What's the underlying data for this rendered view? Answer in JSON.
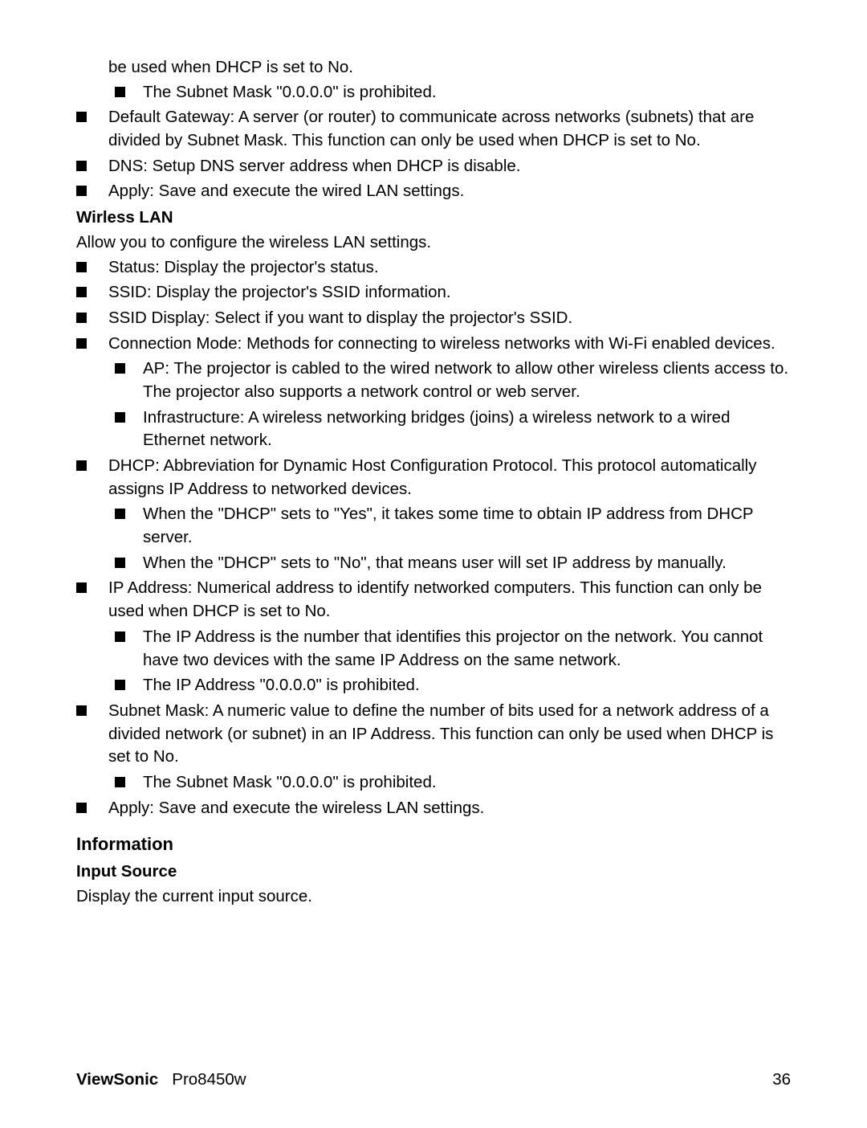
{
  "line_continued": "be used when DHCP is set to No.",
  "sub_subnet_prohibited": "The Subnet Mask \"0.0.0.0\" is prohibited.",
  "default_gateway": "Default Gateway: A server (or router) to communicate across networks (subnets) that are divided by Subnet Mask. This function can only be used when DHCP is set to No.",
  "dns": "DNS: Setup DNS server address when DHCP is disable.",
  "apply_wired": "Apply: Save and execute the wired LAN settings.",
  "wireless_heading": "Wirless LAN",
  "wireless_intro": "Allow you to configure the wireless LAN settings.",
  "status": "Status: Display the projector's status.",
  "ssid": "SSID: Display the projector's SSID information.",
  "ssid_display": "SSID Display: Select if you want to display the projector's SSID.",
  "conn_mode": "Connection Mode: Methods for connecting to wireless networks with Wi-Fi enabled devices.",
  "ap": "AP: The projector is cabled to the wired network to allow other wireless clients access to. The projector also supports a network control or web server.",
  "infra": "Infrastructure: A wireless networking bridges (joins) a wireless network to a wired Ethernet network.",
  "dhcp": "DHCP: Abbreviation for Dynamic Host Configuration Protocol. This protocol automatically assigns IP Address to networked devices.",
  "dhcp_yes": "When the \"DHCP\" sets to \"Yes\", it takes some time to obtain IP address from DHCP server.",
  "dhcp_no": "When the \"DHCP\" sets to \"No\", that means user will set IP address by manually.",
  "ip_address": "IP Address: Numerical address to identify networked computers. This function can only be used when DHCP is set to No.",
  "ip_note1": "The IP Address is the number that identifies this projector on the network. You cannot have two devices with the same IP Address on the same network.",
  "ip_note2": "The IP Address \"0.0.0.0\" is prohibited.",
  "subnet_mask": "Subnet Mask: A numeric value to define the number of bits used for a network address of a divided network (or subnet) in an IP Address. This function can only be used when DHCP is set to No.",
  "subnet_note": "The Subnet Mask \"0.0.0.0\" is prohibited.",
  "apply_wireless": "Apply: Save and execute the wireless LAN settings.",
  "info_heading": "Information",
  "input_source_heading": "Input Source",
  "input_source_text": "Display the current input source.",
  "footer_brand": "ViewSonic",
  "footer_model": "Pro8450w",
  "page_number": "36"
}
